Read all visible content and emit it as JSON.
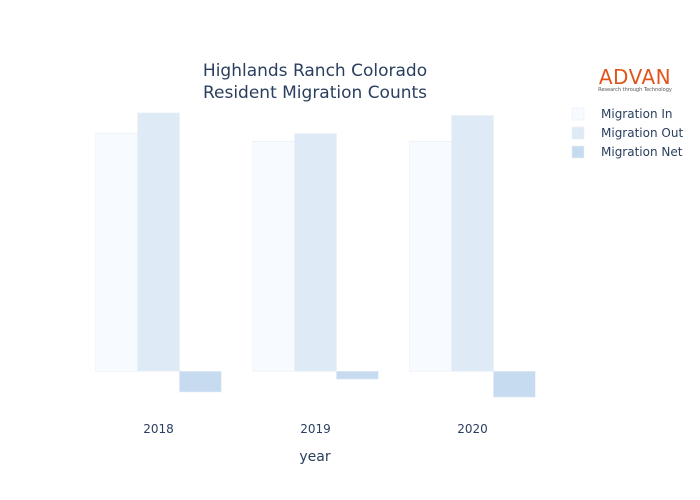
{
  "logo": {
    "brand": "ADVAN",
    "tagline": "Research through Technology"
  },
  "chart_data": {
    "type": "bar",
    "title": "Highlands Ranch Colorado\nResident Migration Counts",
    "xlabel": "year",
    "ylabel": "",
    "categories": [
      "2018",
      "2019",
      "2020"
    ],
    "series": [
      {
        "name": "Migration In",
        "color": "#f7fbff",
        "values": [
          9200,
          8900,
          8900
        ]
      },
      {
        "name": "Migration Out",
        "color": "#deebf7",
        "values": [
          10000,
          9200,
          9900
        ]
      },
      {
        "name": "Migration Net",
        "color": "#c6dbef",
        "values": [
          -800,
          -300,
          -1000
        ]
      }
    ],
    "ylim": [
      -1500,
      10500
    ],
    "grid": false,
    "legend_position": "top-right"
  }
}
